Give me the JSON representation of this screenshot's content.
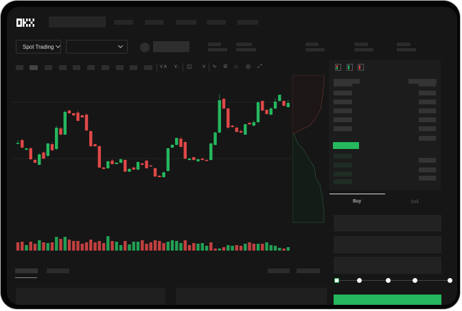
{
  "header": {
    "logo": "OKX"
  },
  "market": {
    "mode_selector": "Spot Trading"
  },
  "trade_panel": {
    "tabs": [
      {
        "label": "Buy",
        "active": true
      },
      {
        "label": "Sell",
        "active": false
      }
    ],
    "leverage_slider_value": 0
  },
  "colors": {
    "up": "#25b85f",
    "down": "#e04848",
    "background": "#161616"
  },
  "toolbar_icons": [
    "indicators-icon",
    "chart-type-icon",
    "settings-icon",
    "line-tool-icon",
    "ruler-icon",
    "camera-icon",
    "target-icon",
    "fullscreen-icon"
  ],
  "orderbook_icons": [
    "both-sides-icon",
    "bids-only-icon",
    "asks-only-icon"
  ],
  "chart_data": {
    "type": "candlestick",
    "candles": [
      [
        93,
        97,
        91,
        93
      ],
      [
        97,
        99,
        85,
        86
      ],
      [
        83,
        85,
        82,
        85
      ],
      [
        85,
        87,
        68,
        69
      ],
      [
        68,
        70,
        63,
        64
      ],
      [
        61,
        78,
        60,
        76
      ],
      [
        79,
        81,
        69,
        70
      ],
      [
        74,
        93,
        72,
        92
      ],
      [
        91,
        94,
        81,
        82
      ],
      [
        84,
        118,
        82,
        115
      ],
      [
        114,
        116,
        104,
        105
      ],
      [
        105,
        140,
        104,
        138
      ],
      [
        140,
        141,
        135,
        136
      ],
      [
        136,
        137,
        132,
        133
      ],
      [
        137,
        140,
        124,
        125
      ],
      [
        133,
        134,
        130,
        130
      ],
      [
        134,
        136,
        110,
        111
      ],
      [
        110,
        111,
        87,
        88
      ],
      [
        91,
        92,
        87,
        88
      ],
      [
        88,
        89,
        56,
        57
      ],
      [
        57,
        58,
        54,
        55
      ],
      [
        56,
        67,
        55,
        66
      ],
      [
        67,
        69,
        61,
        62
      ],
      [
        62,
        65,
        62,
        64
      ],
      [
        64,
        70,
        63,
        69
      ],
      [
        68,
        69,
        50,
        51
      ],
      [
        51,
        56,
        50,
        55
      ],
      [
        57,
        58,
        53,
        54
      ],
      [
        54,
        66,
        53,
        65
      ],
      [
        63,
        64,
        60,
        61
      ],
      [
        67,
        68,
        55,
        56
      ],
      [
        60,
        61,
        59,
        59
      ],
      [
        56,
        57,
        43,
        44
      ],
      [
        45,
        46,
        43,
        43
      ],
      [
        43,
        51,
        42,
        50
      ],
      [
        52,
        86,
        51,
        85
      ],
      [
        86,
        91,
        85,
        90
      ],
      [
        90,
        101,
        89,
        100
      ],
      [
        99,
        102,
        86,
        87
      ],
      [
        94,
        96,
        69,
        70
      ],
      [
        68,
        71,
        67,
        70
      ],
      [
        72,
        73,
        67,
        68
      ],
      [
        66,
        70,
        65,
        69
      ],
      [
        70,
        71,
        67,
        68
      ],
      [
        68,
        69,
        66,
        67
      ],
      [
        68,
        93,
        67,
        92
      ],
      [
        90,
        109,
        89,
        108
      ],
      [
        108,
        164,
        107,
        155
      ],
      [
        157,
        159,
        142,
        143
      ],
      [
        143,
        144,
        113,
        115
      ],
      [
        118,
        119,
        115,
        116
      ],
      [
        115,
        117,
        108,
        109
      ],
      [
        110,
        112,
        107,
        108
      ],
      [
        105,
        121,
        104,
        120
      ],
      [
        122,
        124,
        119,
        120
      ],
      [
        118,
        126,
        117,
        123
      ],
      [
        123,
        154,
        122,
        152
      ],
      [
        154,
        155,
        139,
        140
      ],
      [
        141,
        142,
        134,
        135
      ],
      [
        134,
        145,
        133,
        143
      ],
      [
        143,
        158,
        142,
        153
      ],
      [
        154,
        163,
        153,
        163
      ],
      [
        154,
        155,
        146,
        147
      ],
      [
        145,
        156,
        144,
        151
      ]
    ],
    "volume": [
      [
        "down",
        12
      ],
      [
        "down",
        13
      ],
      [
        "up",
        8
      ],
      [
        "down",
        13
      ],
      [
        "down",
        10
      ],
      [
        "up",
        15
      ],
      [
        "down",
        12
      ],
      [
        "up",
        11
      ],
      [
        "down",
        12
      ],
      [
        "up",
        20
      ],
      [
        "down",
        17
      ],
      [
        "up",
        20
      ],
      [
        "down",
        16
      ],
      [
        "down",
        14
      ],
      [
        "down",
        14
      ],
      [
        "down",
        10
      ],
      [
        "down",
        12
      ],
      [
        "down",
        16
      ],
      [
        "down",
        12
      ],
      [
        "down",
        14
      ],
      [
        "down",
        11
      ],
      [
        "up",
        21
      ],
      [
        "down",
        14
      ],
      [
        "up",
        13
      ],
      [
        "up",
        8
      ],
      [
        "down",
        14
      ],
      [
        "up",
        9
      ],
      [
        "up",
        13
      ],
      [
        "up",
        13
      ],
      [
        "down",
        15
      ],
      [
        "down",
        10
      ],
      [
        "down",
        12
      ],
      [
        "down",
        15
      ],
      [
        "down",
        14
      ],
      [
        "down",
        11
      ],
      [
        "up",
        13
      ],
      [
        "up",
        15
      ],
      [
        "up",
        14
      ],
      [
        "up",
        11
      ],
      [
        "down",
        15
      ],
      [
        "down",
        8
      ],
      [
        "down",
        11
      ],
      [
        "up",
        10
      ],
      [
        "up",
        11
      ],
      [
        "up",
        7
      ],
      [
        "down",
        12
      ],
      [
        "down",
        3
      ],
      [
        "up",
        3
      ],
      [
        "down",
        5
      ],
      [
        "up",
        8
      ],
      [
        "up",
        7
      ],
      [
        "down",
        8
      ],
      [
        "down",
        7
      ],
      [
        "up",
        10
      ],
      [
        "down",
        12
      ],
      [
        "down",
        10
      ],
      [
        "up",
        10
      ],
      [
        "down",
        10
      ],
      [
        "up",
        12
      ],
      [
        "up",
        8
      ],
      [
        "up",
        7
      ],
      [
        "up",
        4
      ],
      [
        "down",
        3
      ],
      [
        "up",
        5
      ]
    ],
    "grid": true
  }
}
